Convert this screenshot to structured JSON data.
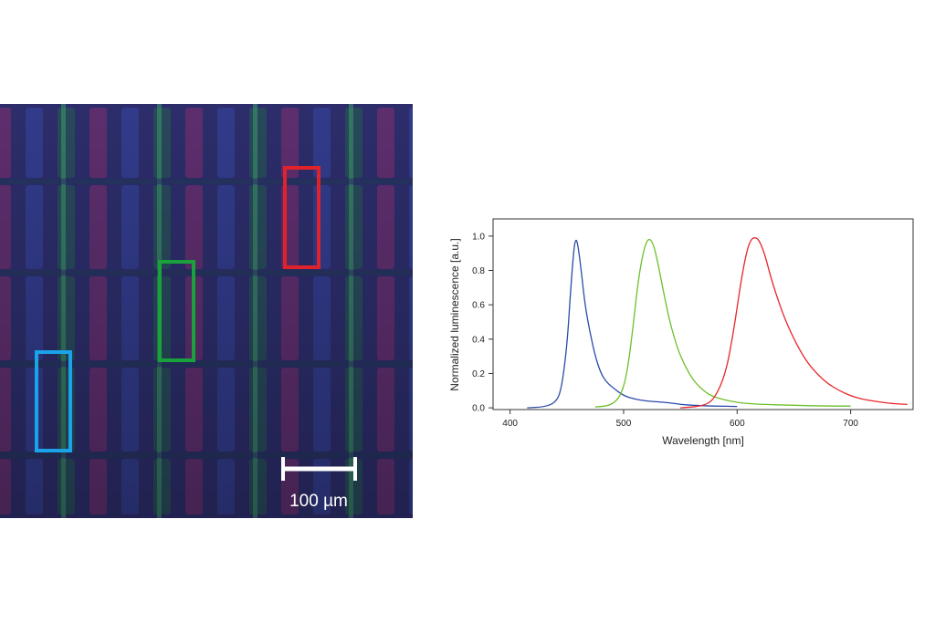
{
  "micrograph": {
    "background_color": "#2c2d6a",
    "scale_bar": {
      "label": "100 µm",
      "color": "#ffffff"
    },
    "highlight_boxes": [
      {
        "name": "red-pixel-box",
        "color": "#e0222a"
      },
      {
        "name": "green-pixel-box",
        "color": "#1aa13c"
      },
      {
        "name": "blue-pixel-box",
        "color": "#1aa3e8"
      }
    ]
  },
  "chart_data": {
    "type": "line",
    "xlabel": "Wavelength [nm]",
    "ylabel": "Normalized luminescence [a.u.]",
    "xlim": [
      385,
      755
    ],
    "ylim": [
      -0.01,
      1.1
    ],
    "xticks": [
      400,
      500,
      600,
      700
    ],
    "yticks": [
      0.0,
      0.2,
      0.4,
      0.6,
      0.8,
      1.0
    ],
    "ytick_labels": [
      "0.0",
      "0.2",
      "0.4",
      "0.6",
      "0.8",
      "1.0"
    ],
    "series": [
      {
        "name": "blue",
        "color": "#2b4aa8",
        "x": [
          415,
          430,
          440,
          445,
          450,
          453,
          456,
          458,
          460,
          463,
          466,
          470,
          475,
          480,
          485,
          490,
          500,
          510,
          520,
          530,
          540,
          550,
          560,
          580,
          600
        ],
        "y": [
          0.0,
          0.005,
          0.03,
          0.1,
          0.35,
          0.65,
          0.92,
          0.99,
          0.94,
          0.78,
          0.6,
          0.45,
          0.3,
          0.2,
          0.15,
          0.12,
          0.07,
          0.05,
          0.04,
          0.035,
          0.03,
          0.02,
          0.015,
          0.01,
          0.008
        ]
      },
      {
        "name": "green",
        "color": "#6cbf2c",
        "x": [
          475,
          485,
          492,
          498,
          503,
          508,
          513,
          518,
          522,
          526,
          530,
          535,
          540,
          545,
          550,
          560,
          570,
          580,
          600,
          620,
          650,
          680,
          700
        ],
        "y": [
          0.005,
          0.01,
          0.03,
          0.08,
          0.2,
          0.45,
          0.75,
          0.93,
          0.99,
          0.96,
          0.85,
          0.68,
          0.52,
          0.4,
          0.3,
          0.17,
          0.1,
          0.06,
          0.03,
          0.02,
          0.015,
          0.01,
          0.01
        ]
      },
      {
        "name": "red",
        "color": "#e8262b",
        "x": [
          550,
          570,
          580,
          590,
          597,
          603,
          608,
          612,
          616,
          620,
          625,
          630,
          640,
          650,
          660,
          670,
          680,
          690,
          700,
          710,
          720,
          735,
          750
        ],
        "y": [
          0.0,
          0.01,
          0.05,
          0.2,
          0.45,
          0.72,
          0.9,
          0.98,
          0.995,
          0.97,
          0.88,
          0.75,
          0.55,
          0.4,
          0.28,
          0.2,
          0.14,
          0.1,
          0.07,
          0.05,
          0.04,
          0.025,
          0.02
        ]
      }
    ]
  }
}
